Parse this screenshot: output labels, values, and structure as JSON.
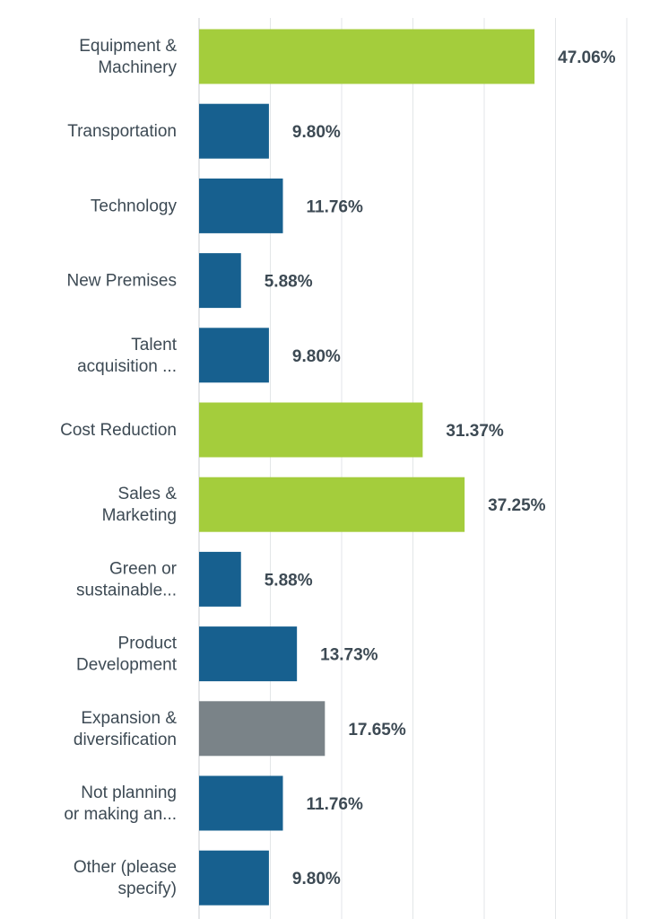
{
  "chart_data": {
    "type": "bar",
    "orientation": "horizontal",
    "title": "",
    "xlabel": "",
    "ylabel": "",
    "xlim": [
      0,
      60
    ],
    "grid": true,
    "categories": [
      [
        "Equipment &",
        "Machinery"
      ],
      [
        "Transportation"
      ],
      [
        "Technology"
      ],
      [
        "New Premises"
      ],
      [
        "Talent",
        "acquisition ..."
      ],
      [
        "Cost Reduction"
      ],
      [
        "Sales &",
        "Marketing"
      ],
      [
        "Green or",
        "sustainable..."
      ],
      [
        "Product",
        "Development"
      ],
      [
        "Expansion &",
        "diversification"
      ],
      [
        "Not planning",
        "or making an..."
      ],
      [
        "Other (please",
        "specify)"
      ]
    ],
    "values": [
      47.06,
      9.8,
      11.76,
      5.88,
      9.8,
      31.37,
      37.25,
      5.88,
      13.73,
      17.65,
      11.76,
      9.8
    ],
    "value_labels": [
      "47.06%",
      "9.80%",
      "11.76%",
      "5.88%",
      "9.80%",
      "31.37%",
      "37.25%",
      "5.88%",
      "13.73%",
      "17.65%",
      "11.76%",
      "9.80%"
    ],
    "bar_colors": [
      "#a4cd3c",
      "#17608f",
      "#17608f",
      "#17608f",
      "#17608f",
      "#a4cd3c",
      "#a4cd3c",
      "#17608f",
      "#17608f",
      "#7a8388",
      "#17608f",
      "#17608f"
    ]
  }
}
